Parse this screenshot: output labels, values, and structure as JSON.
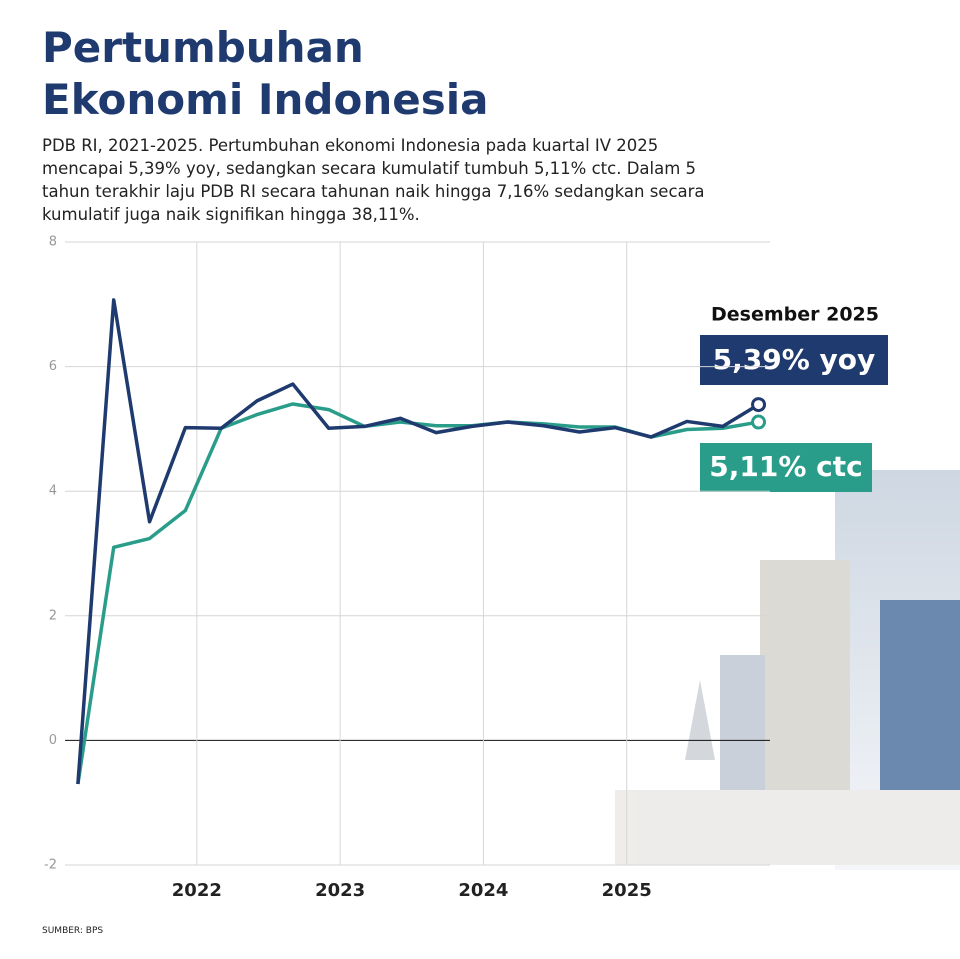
{
  "chart_data": {
    "type": "line",
    "title": "Pertumbuhan Ekonomi Indonesia",
    "subtitle": "PDB RI, 2021-2025. Pertumbuhan ekonomi Indonesia pada kuartal IV 2025 mencapai 5,39% yoy, sedangkan secara kumulatif tumbuh 5,11% ctc. Dalam 5 tahun terakhir laju PDB RI secara tahunan naik hingga 7,16% sedangkan secara kumulatif juga naik signifikan hingga 38,11%.",
    "source": "SUMBER: BPS",
    "x": [
      2021.17,
      2021.42,
      2021.67,
      2021.92,
      2022.17,
      2022.42,
      2022.67,
      2022.92,
      2023.17,
      2023.42,
      2023.67,
      2023.92,
      2024.17,
      2024.42,
      2024.67,
      2024.92,
      2025.17,
      2025.42,
      2025.67,
      2025.92
    ],
    "series": [
      {
        "name": "yoy",
        "color": "#1f3a6e",
        "values": [
          -0.7,
          7.07,
          3.51,
          5.02,
          5.01,
          5.45,
          5.72,
          5.01,
          5.04,
          5.17,
          4.94,
          5.04,
          5.11,
          5.05,
          4.95,
          5.02,
          4.87,
          5.12,
          5.04,
          5.39
        ]
      },
      {
        "name": "ctc",
        "color": "#2a9d8a",
        "values": [
          -0.7,
          3.1,
          3.24,
          3.69,
          5.01,
          5.23,
          5.4,
          5.31,
          5.04,
          5.11,
          5.05,
          5.05,
          5.11,
          5.08,
          5.03,
          5.03,
          4.87,
          4.99,
          5.01,
          5.11
        ]
      }
    ],
    "annotations": [
      "Desember 2025",
      "5,39% yoy",
      "5,11% ctc"
    ],
    "xlim": [
      2021.08,
      2026
    ],
    "xticks": [
      2022,
      2023,
      2024,
      2025
    ],
    "ylim": [
      -2,
      8
    ],
    "yticks": [
      -2,
      0,
      2,
      4,
      6,
      8
    ],
    "grid": true
  }
}
